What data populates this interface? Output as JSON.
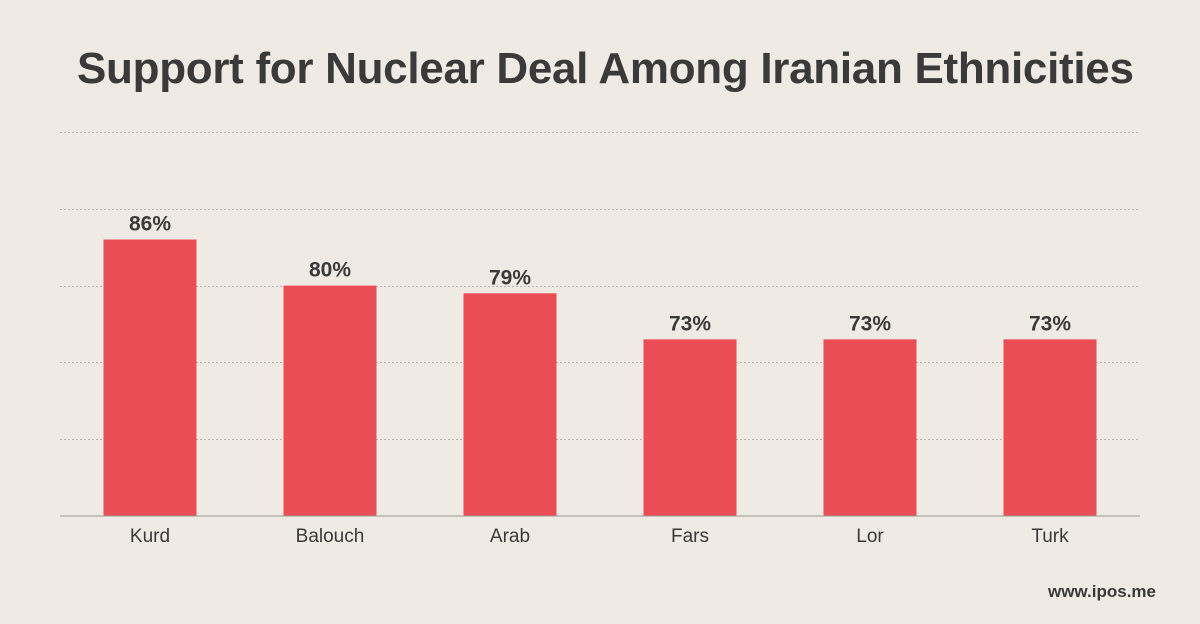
{
  "chart_data": {
    "type": "bar",
    "title": "Support for Nuclear Deal Among Iranian Ethnicities",
    "categories": [
      "Kurd",
      "Balouch",
      "Arab",
      "Fars",
      "Lor",
      "Turk"
    ],
    "values": [
      86,
      80,
      79,
      73,
      73,
      73
    ],
    "value_labels": [
      "86%",
      "80%",
      "79%",
      "73%",
      "73%",
      "73%"
    ],
    "xlabel": "",
    "ylabel": "",
    "ylim": [
      50,
      100
    ],
    "grid": true,
    "bar_color": "#eb4d56"
  },
  "footer": {
    "source": "www.ipos.me"
  }
}
